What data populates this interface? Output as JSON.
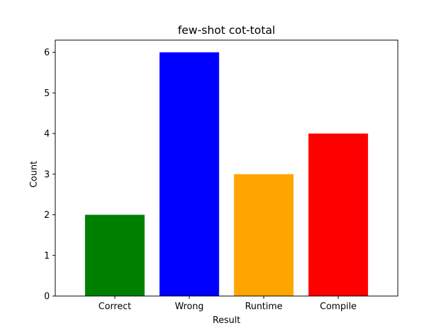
{
  "chart_data": {
    "type": "bar",
    "title": "few-shot cot-total",
    "xlabel": "Result",
    "ylabel": "Count",
    "categories": [
      "Correct",
      "Wrong",
      "Runtime",
      "Compile"
    ],
    "values": [
      2,
      6,
      3,
      4
    ],
    "colors": [
      "#008000",
      "#0000ff",
      "#ffa500",
      "#ff0000"
    ],
    "ylim": [
      0,
      6.3
    ],
    "yticks": [
      0,
      1,
      2,
      3,
      4,
      5,
      6
    ],
    "grid": false,
    "legend": "none"
  }
}
